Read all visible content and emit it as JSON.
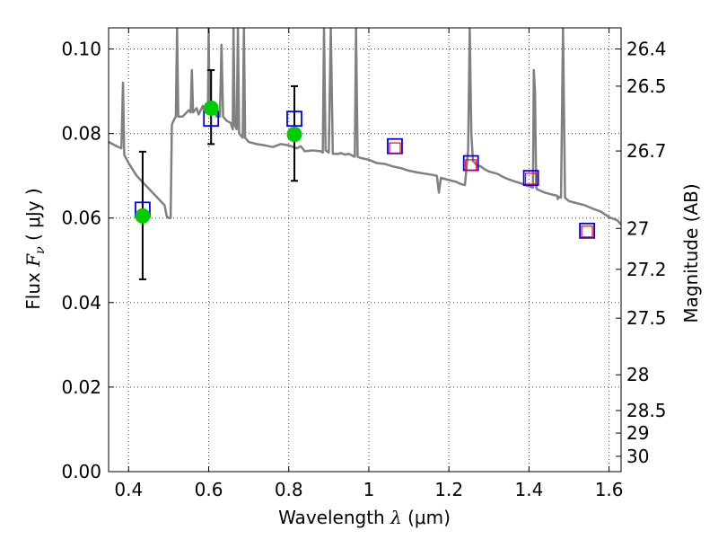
{
  "chart_data": {
    "type": "scatter",
    "title": "",
    "xlabel": "Wavelength  λ (μm)",
    "ylabel": "Flux  F_ν ( μJy )",
    "ylabel_right": "Magnitude (AB)",
    "xlim": [
      0.35,
      1.63
    ],
    "ylim": [
      0.0,
      0.105
    ],
    "grid": true,
    "x_ticks": [
      {
        "value": 0.4,
        "label": "0.4"
      },
      {
        "value": 0.6,
        "label": "0.6"
      },
      {
        "value": 0.8,
        "label": "0.8"
      },
      {
        "value": 1.0,
        "label": "1"
      },
      {
        "value": 1.2,
        "label": "1.2"
      },
      {
        "value": 1.4,
        "label": "1.4"
      },
      {
        "value": 1.6,
        "label": "1.6"
      }
    ],
    "y_ticks": [
      {
        "value": 0.0,
        "label": "0.00"
      },
      {
        "value": 0.02,
        "label": "0.02"
      },
      {
        "value": 0.04,
        "label": "0.04"
      },
      {
        "value": 0.06,
        "label": "0.06"
      },
      {
        "value": 0.08,
        "label": "0.08"
      },
      {
        "value": 0.1,
        "label": "0.10"
      }
    ],
    "right_ticks": [
      {
        "value": 26.4,
        "label": "26.4"
      },
      {
        "value": 26.5,
        "label": "26.5"
      },
      {
        "value": 26.7,
        "label": "26.7"
      },
      {
        "value": 27.0,
        "label": "27"
      },
      {
        "value": 27.2,
        "label": "27.2"
      },
      {
        "value": 27.5,
        "label": "27.5"
      },
      {
        "value": 28.0,
        "label": "28"
      },
      {
        "value": 28.5,
        "label": "28.5"
      },
      {
        "value": 29.0,
        "label": "29"
      },
      {
        "value": 30.0,
        "label": "30"
      }
    ],
    "series": [
      {
        "kind": "line",
        "color": "#808080",
        "points": [
          [
            0.35,
            0.078
          ],
          [
            0.37,
            0.077
          ],
          [
            0.382,
            0.0765
          ],
          [
            0.386,
            0.092
          ],
          [
            0.389,
            0.075
          ],
          [
            0.4,
            0.073
          ],
          [
            0.42,
            0.07
          ],
          [
            0.44,
            0.068
          ],
          [
            0.46,
            0.066
          ],
          [
            0.48,
            0.064
          ],
          [
            0.49,
            0.063
          ],
          [
            0.495,
            0.0605
          ],
          [
            0.5,
            0.06
          ],
          [
            0.505,
            0.06
          ],
          [
            0.508,
            0.082
          ],
          [
            0.512,
            0.083
          ],
          [
            0.518,
            0.084
          ],
          [
            0.521,
            0.105
          ],
          [
            0.524,
            0.084
          ],
          [
            0.535,
            0.084
          ],
          [
            0.55,
            0.0855
          ],
          [
            0.555,
            0.085
          ],
          [
            0.558,
            0.095
          ],
          [
            0.561,
            0.085
          ],
          [
            0.57,
            0.086
          ],
          [
            0.575,
            0.0845
          ],
          [
            0.585,
            0.0865
          ],
          [
            0.59,
            0.085
          ],
          [
            0.595,
            0.087
          ],
          [
            0.598,
            0.085
          ],
          [
            0.6,
            0.105
          ],
          [
            0.602,
            0.085
          ],
          [
            0.615,
            0.085
          ],
          [
            0.62,
            0.084
          ],
          [
            0.625,
            0.085
          ],
          [
            0.628,
            0.084
          ],
          [
            0.632,
            0.101
          ],
          [
            0.636,
            0.084
          ],
          [
            0.645,
            0.083
          ],
          [
            0.655,
            0.0825
          ],
          [
            0.66,
            0.081
          ],
          [
            0.662,
            0.105
          ],
          [
            0.665,
            0.082
          ],
          [
            0.67,
            0.081
          ],
          [
            0.673,
            0.105
          ],
          [
            0.676,
            0.08
          ],
          [
            0.685,
            0.079
          ],
          [
            0.688,
            0.105
          ],
          [
            0.691,
            0.079
          ],
          [
            0.7,
            0.078
          ],
          [
            0.72,
            0.0775
          ],
          [
            0.74,
            0.0772
          ],
          [
            0.76,
            0.0768
          ],
          [
            0.78,
            0.0775
          ],
          [
            0.8,
            0.0772
          ],
          [
            0.82,
            0.0765
          ],
          [
            0.83,
            0.077
          ],
          [
            0.84,
            0.0758
          ],
          [
            0.86,
            0.076
          ],
          [
            0.88,
            0.0758
          ],
          [
            0.885,
            0.0755
          ],
          [
            0.888,
            0.105
          ],
          [
            0.892,
            0.076
          ],
          [
            0.9,
            0.0755
          ],
          [
            0.905,
            0.105
          ],
          [
            0.91,
            0.0752
          ],
          [
            0.925,
            0.0752
          ],
          [
            0.93,
            0.0754
          ],
          [
            0.94,
            0.075
          ],
          [
            0.95,
            0.0752
          ],
          [
            0.965,
            0.0745
          ],
          [
            0.968,
            0.105
          ],
          [
            0.972,
            0.0745
          ],
          [
            0.98,
            0.0742
          ],
          [
            1.0,
            0.0738
          ],
          [
            1.02,
            0.073
          ],
          [
            1.04,
            0.0728
          ],
          [
            1.06,
            0.0722
          ],
          [
            1.08,
            0.0718
          ],
          [
            1.1,
            0.0712
          ],
          [
            1.12,
            0.0708
          ],
          [
            1.14,
            0.0705
          ],
          [
            1.16,
            0.0702
          ],
          [
            1.17,
            0.07
          ],
          [
            1.175,
            0.066
          ],
          [
            1.18,
            0.0695
          ],
          [
            1.2,
            0.069
          ],
          [
            1.22,
            0.0685
          ],
          [
            1.225,
            0.0682
          ],
          [
            1.24,
            0.0678
          ],
          [
            1.248,
            0.076
          ],
          [
            1.252,
            0.105
          ],
          [
            1.256,
            0.08
          ],
          [
            1.26,
            0.0735
          ],
          [
            1.27,
            0.0725
          ],
          [
            1.28,
            0.0722
          ],
          [
            1.29,
            0.0715
          ],
          [
            1.3,
            0.071
          ],
          [
            1.32,
            0.0705
          ],
          [
            1.34,
            0.0695
          ],
          [
            1.36,
            0.0688
          ],
          [
            1.38,
            0.0682
          ],
          [
            1.4,
            0.0675
          ],
          [
            1.41,
            0.0672
          ],
          [
            1.412,
            0.095
          ],
          [
            1.415,
            0.09
          ],
          [
            1.418,
            0.0672
          ],
          [
            1.42,
            0.0668
          ],
          [
            1.44,
            0.066
          ],
          [
            1.46,
            0.0655
          ],
          [
            1.47,
            0.0653
          ],
          [
            1.472,
            0.0645
          ],
          [
            1.475,
            0.065
          ],
          [
            1.48,
            0.0648
          ],
          [
            1.485,
            0.105
          ],
          [
            1.49,
            0.0648
          ],
          [
            1.5,
            0.064
          ],
          [
            1.52,
            0.0635
          ],
          [
            1.54,
            0.063
          ],
          [
            1.56,
            0.0622
          ],
          [
            1.58,
            0.0615
          ],
          [
            1.6,
            0.0602
          ],
          [
            1.62,
            0.0595
          ],
          [
            1.63,
            0.0585
          ]
        ]
      },
      {
        "kind": "errorbar",
        "color": "#000000",
        "points": [
          {
            "x": 0.435,
            "y": 0.0605,
            "low": 0.0455,
            "high": 0.0757
          },
          {
            "x": 0.606,
            "y": 0.086,
            "low": 0.0775,
            "high": 0.095
          },
          {
            "x": 0.814,
            "y": 0.0798,
            "low": 0.0688,
            "high": 0.0912
          }
        ]
      },
      {
        "kind": "marker-square",
        "color": "#0000ff",
        "points": [
          [
            0.435,
            0.062
          ],
          [
            0.606,
            0.0835
          ],
          [
            0.814,
            0.0835
          ],
          [
            1.065,
            0.077
          ],
          [
            1.255,
            0.073
          ],
          [
            1.405,
            0.0695
          ],
          [
            1.545,
            0.057
          ]
        ]
      },
      {
        "kind": "marker-square-small",
        "color": "#ff0000",
        "points": [
          [
            1.065,
            0.0765
          ],
          [
            1.255,
            0.0725
          ],
          [
            1.405,
            0.0693
          ],
          [
            1.545,
            0.0568
          ]
        ]
      },
      {
        "kind": "marker-circle",
        "color": "#00cc00",
        "points": [
          [
            0.435,
            0.0605
          ],
          [
            0.606,
            0.086
          ],
          [
            0.814,
            0.0798
          ]
        ]
      }
    ]
  }
}
